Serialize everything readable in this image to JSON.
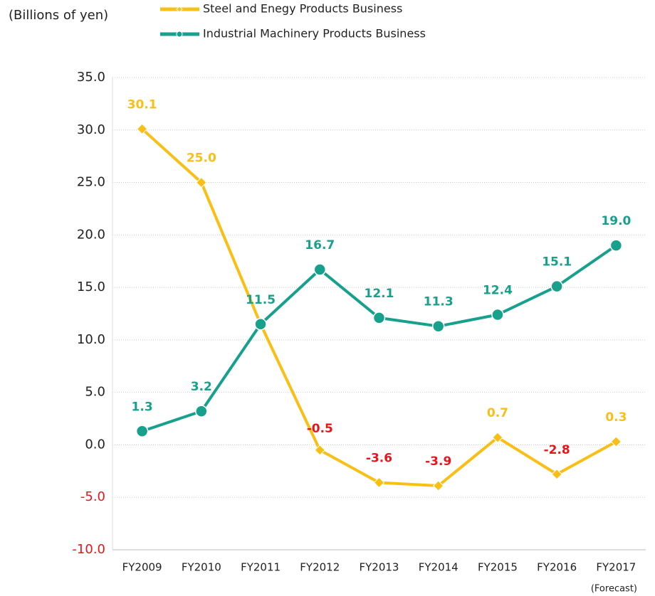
{
  "chart_data": {
    "type": "line",
    "y_label": "(Billions of yen)",
    "annotation": "(Forecast)",
    "categories": [
      "FY2009",
      "FY2010",
      "FY2011",
      "FY2012",
      "FY2013",
      "FY2014",
      "FY2015",
      "FY2016",
      "FY2017"
    ],
    "series": [
      {
        "name": "Steel and Enegy Products Business",
        "color": "#f9bf15",
        "marker": "diamond",
        "values": [
          30.1,
          25.0,
          11.5,
          -0.5,
          -3.6,
          -3.9,
          0.7,
          -2.8,
          0.3
        ],
        "value_labels": [
          "30.1",
          "25.0",
          null,
          "-0.5",
          "-3.6",
          "-3.9",
          "0.7",
          "-2.8",
          "0.3"
        ]
      },
      {
        "name": "Industrial Machinery Products Business",
        "color": "#17a08c",
        "marker": "circle",
        "values": [
          1.3,
          3.2,
          11.5,
          16.7,
          12.1,
          11.3,
          12.4,
          15.1,
          19.0
        ],
        "value_labels": [
          "1.3",
          "3.2",
          "11.5",
          "16.7",
          "12.1",
          "11.3",
          "12.4",
          "15.1",
          "19.0"
        ]
      }
    ],
    "negative_color": "#e8161b",
    "ylim": [
      -10,
      35
    ],
    "yticks": [
      {
        "value": -10,
        "label": "-10.0"
      },
      {
        "value": -5,
        "label": "-5.0"
      },
      {
        "value": 0,
        "label": "0.0"
      },
      {
        "value": 5,
        "label": "5.0"
      },
      {
        "value": 10,
        "label": "10.0"
      },
      {
        "value": 15,
        "label": "15.0"
      },
      {
        "value": 20,
        "label": "20.0"
      },
      {
        "value": 25,
        "label": "25.0"
      },
      {
        "value": 30,
        "label": "30.0"
      },
      {
        "value": 35,
        "label": "35.0"
      }
    ],
    "grid": true
  }
}
